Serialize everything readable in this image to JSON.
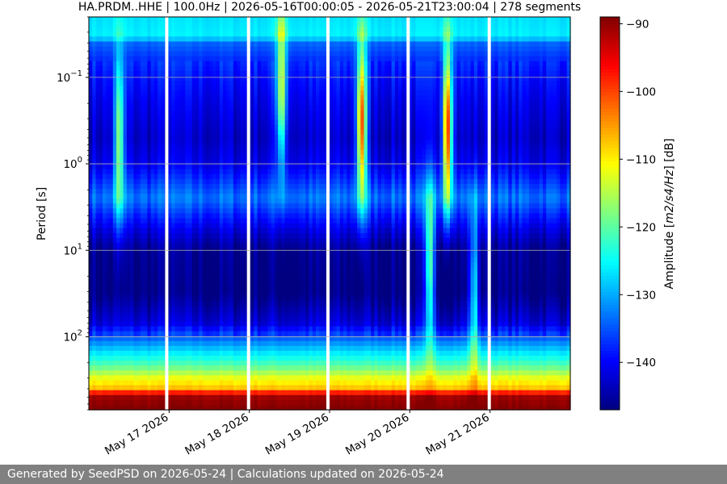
{
  "chart_data": {
    "type": "heatmap",
    "title": "HA.PRDM..HHE | 100.0Hz | 2026-05-16T00:00:05 - 2026-05-21T23:00:04 | 278 segments",
    "ylabel": "Period [s]",
    "y_scale": "log",
    "y_inverted": true,
    "ylim": [
      0.02,
      700
    ],
    "y_ticks": [
      {
        "value": 0.1,
        "base": "10",
        "exp": "−1"
      },
      {
        "value": 1,
        "base": "10",
        "exp": "0"
      },
      {
        "value": 10,
        "base": "10",
        "exp": "1"
      },
      {
        "value": 100,
        "base": "10",
        "exp": "2"
      }
    ],
    "x_ticks": [
      "May 17 2026",
      "May 18 2026",
      "May 19 2026",
      "May 20 2026",
      "May 21 2026"
    ],
    "x_range_days": [
      0,
      6
    ],
    "x_tick_days": [
      1,
      2,
      3,
      4,
      5
    ],
    "gaps_days": [
      0.97,
      1.99,
      2.98,
      3.98,
      4.99
    ],
    "colormap": "jet",
    "colorbar": {
      "label_prefix": "Amplitude [",
      "label_core": "m2/s4/Hz",
      "label_suffix": "] [dB]",
      "range": [
        -147,
        -89
      ],
      "ticks": [
        -90,
        -100,
        -110,
        -120,
        -130,
        -140
      ]
    },
    "band_profile": [
      {
        "period": 0.02,
        "db": -127
      },
      {
        "period": 0.034,
        "db": -126
      },
      {
        "period": 0.04,
        "db": -134
      },
      {
        "period": 0.06,
        "db": -137
      },
      {
        "period": 0.1,
        "db": -139
      },
      {
        "period": 0.2,
        "db": -141
      },
      {
        "period": 0.5,
        "db": -143
      },
      {
        "period": 1.0,
        "db": -141
      },
      {
        "period": 1.6,
        "db": -137
      },
      {
        "period": 2.5,
        "db": -133
      },
      {
        "period": 4,
        "db": -138
      },
      {
        "period": 6,
        "db": -142
      },
      {
        "period": 10,
        "db": -146
      },
      {
        "period": 30,
        "db": -147
      },
      {
        "period": 70,
        "db": -142
      },
      {
        "period": 100,
        "db": -135
      },
      {
        "period": 150,
        "db": -127
      },
      {
        "period": 220,
        "db": -120
      },
      {
        "period": 300,
        "db": -112
      },
      {
        "period": 400,
        "db": -107
      },
      {
        "period": 480,
        "db": -91
      },
      {
        "period": 700,
        "db": -89
      }
    ],
    "events": [
      {
        "day": 0.38,
        "period": 0.5,
        "db": -118
      },
      {
        "day": 2.4,
        "period": 0.15,
        "db": -112
      },
      {
        "day": 3.4,
        "period": 0.35,
        "db": -100
      },
      {
        "day": 4.47,
        "period": 0.4,
        "db": -97
      },
      {
        "day": 4.25,
        "period": 15,
        "db": -122
      },
      {
        "day": 4.8,
        "period": 30,
        "db": -128
      }
    ]
  },
  "footer": {
    "text": "Generated by SeedPSD on 2026-05-24 | Calculations updated on 2026-05-24"
  }
}
